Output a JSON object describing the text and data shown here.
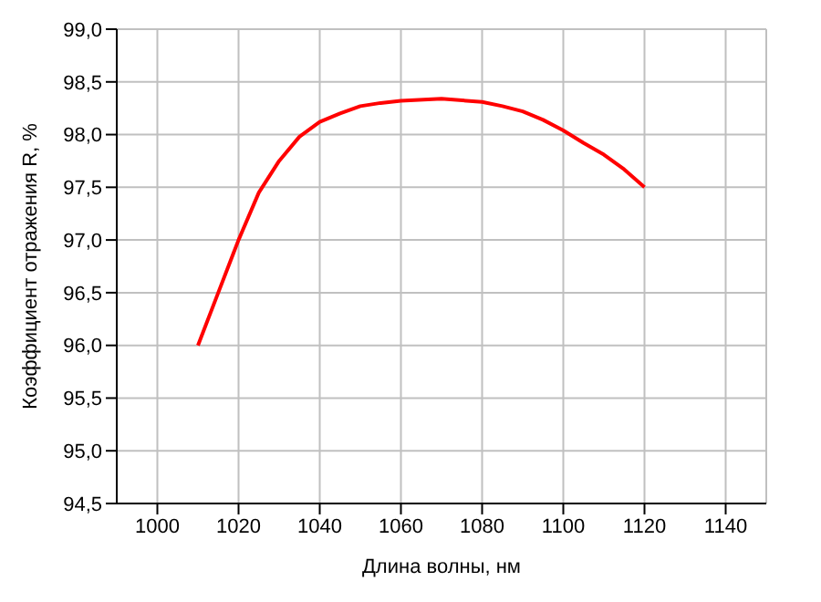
{
  "chart_data": {
    "type": "line",
    "xlabel": "Длина волны, нм",
    "ylabel": "Коэффициент отражения R, %",
    "x": [
      1010,
      1015,
      1020,
      1025,
      1030,
      1035,
      1040,
      1045,
      1050,
      1055,
      1060,
      1070,
      1080,
      1085,
      1090,
      1095,
      1100,
      1105,
      1110,
      1115,
      1120
    ],
    "series": [
      {
        "color": "#ff0000",
        "values": [
          96.0,
          96.5,
          97.0,
          97.45,
          97.75,
          97.98,
          98.12,
          98.2,
          98.27,
          98.3,
          98.32,
          98.34,
          98.31,
          98.27,
          98.22,
          98.14,
          98.04,
          97.92,
          97.81,
          97.67,
          97.5
        ]
      }
    ],
    "xlim": [
      990,
      1150
    ],
    "xticks": [
      1000,
      1020,
      1040,
      1060,
      1080,
      1100,
      1120,
      1140
    ],
    "ylim": [
      94.5,
      99.0
    ],
    "yticks": [
      {
        "value": 94.5,
        "label": "94,5"
      },
      {
        "value": 95.0,
        "label": "95,0"
      },
      {
        "value": 95.5,
        "label": "95,5"
      },
      {
        "value": 96.0,
        "label": "96,0"
      },
      {
        "value": 96.5,
        "label": "96,5"
      },
      {
        "value": 97.0,
        "label": "97,0"
      },
      {
        "value": 97.5,
        "label": "97,5"
      },
      {
        "value": 98.0,
        "label": "98,0"
      },
      {
        "value": 98.5,
        "label": "98,5"
      },
      {
        "value": 99.0,
        "label": "99,0"
      }
    ],
    "grid": true,
    "marker": "none",
    "line_style": "solid"
  }
}
